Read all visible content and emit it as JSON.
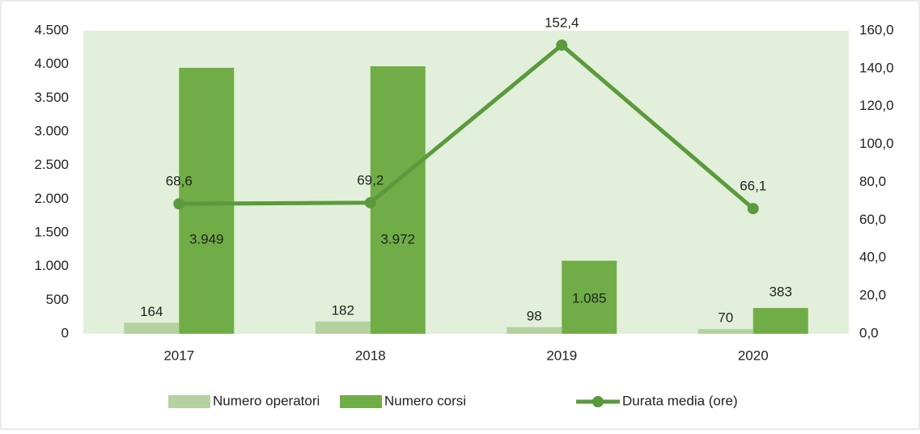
{
  "chart_data": {
    "type": "bar",
    "categories": [
      "2017",
      "2018",
      "2019",
      "2020"
    ],
    "series": [
      {
        "name": "Numero operatori",
        "color": "#b4d19f",
        "values": [
          164,
          182,
          98,
          70
        ]
      },
      {
        "name": "Numero corsi",
        "color": "#70ad47",
        "values": [
          3949,
          3972,
          1085,
          383
        ],
        "value_labels": [
          "3.949",
          "3.972",
          "1.085",
          "383"
        ]
      },
      {
        "name": "Durata media (ore)",
        "color": "#5b9a3c",
        "type": "line",
        "axis": "y2",
        "values": [
          68.6,
          69.2,
          152.4,
          66.1
        ],
        "value_labels": [
          "68,6",
          "69,2",
          "152,4",
          "66,1"
        ]
      }
    ],
    "ylim": [
      0,
      4500
    ],
    "yticks": [
      0,
      500,
      {
        "value": 1000,
        "label": "1.000"
      },
      {
        "value": 1500,
        "label": "1.500"
      },
      {
        "value": 2000,
        "label": "2.000"
      },
      {
        "value": 2500,
        "label": "2.500"
      },
      {
        "value": 3000,
        "label": "3.000"
      },
      {
        "value": 3500,
        "label": "3.500"
      },
      {
        "value": 4000,
        "label": "4.000"
      },
      {
        "value": 4500,
        "label": "4.500"
      }
    ],
    "y2lim": [
      0,
      160
    ],
    "y2ticks": [
      {
        "value": 0,
        "label": "0,0"
      },
      {
        "value": 20,
        "label": "20,0"
      },
      {
        "value": 40,
        "label": "40,0"
      },
      {
        "value": 60,
        "label": "60,0"
      },
      {
        "value": 80,
        "label": "80,0"
      },
      {
        "value": 100,
        "label": "100,0"
      },
      {
        "value": 120,
        "label": "120,0"
      },
      {
        "value": 140,
        "label": "140,0"
      },
      {
        "value": 160,
        "label": "160,0"
      }
    ],
    "legend": "bottom"
  }
}
